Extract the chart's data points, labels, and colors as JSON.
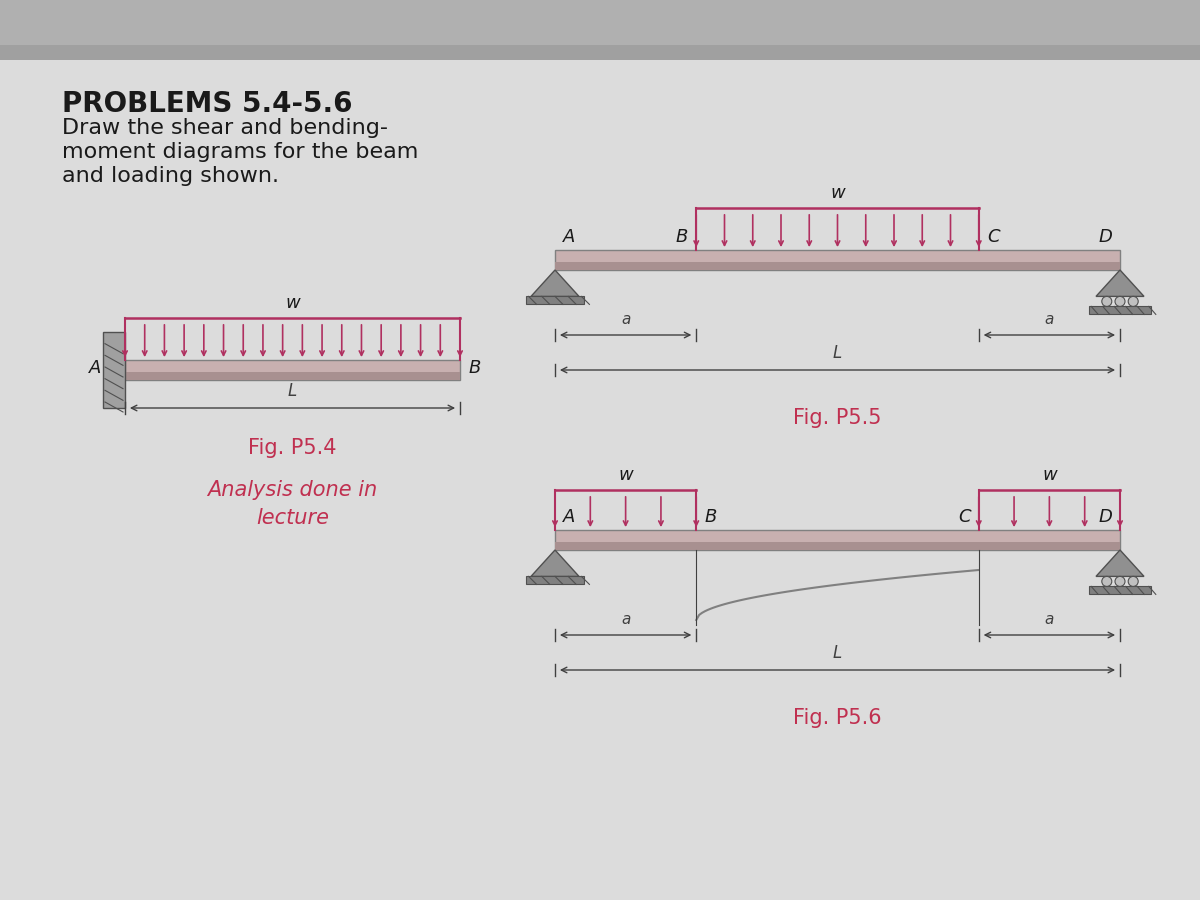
{
  "bg_color": "#c8c8c8",
  "paper_color": "#dcdcdc",
  "top_bar_color": "#b0b0b0",
  "beam_color_light": "#c8b0b0",
  "beam_color_dark": "#a89090",
  "beam_edge_color": "#808080",
  "load_color": "#b03060",
  "support_color": "#909090",
  "support_edge": "#505050",
  "dim_color": "#404040",
  "title": "PROBLEMS 5.4-5.6",
  "subtitle_line1": "Draw the shear and bending-",
  "subtitle_line2": "moment diagrams for the beam",
  "subtitle_line3": "and loading shown.",
  "analysis_text_line1": "Analysis done in",
  "analysis_text_line2": "lecture",
  "fig54_label": "Fig. P5.4",
  "fig55_label": "Fig. P5.5",
  "fig56_label": "Fig. P5.6",
  "red_color": "#c03050",
  "text_color": "#1a1a1a",
  "wall_color": "#909090",
  "wall_hatch_color": "#505050"
}
